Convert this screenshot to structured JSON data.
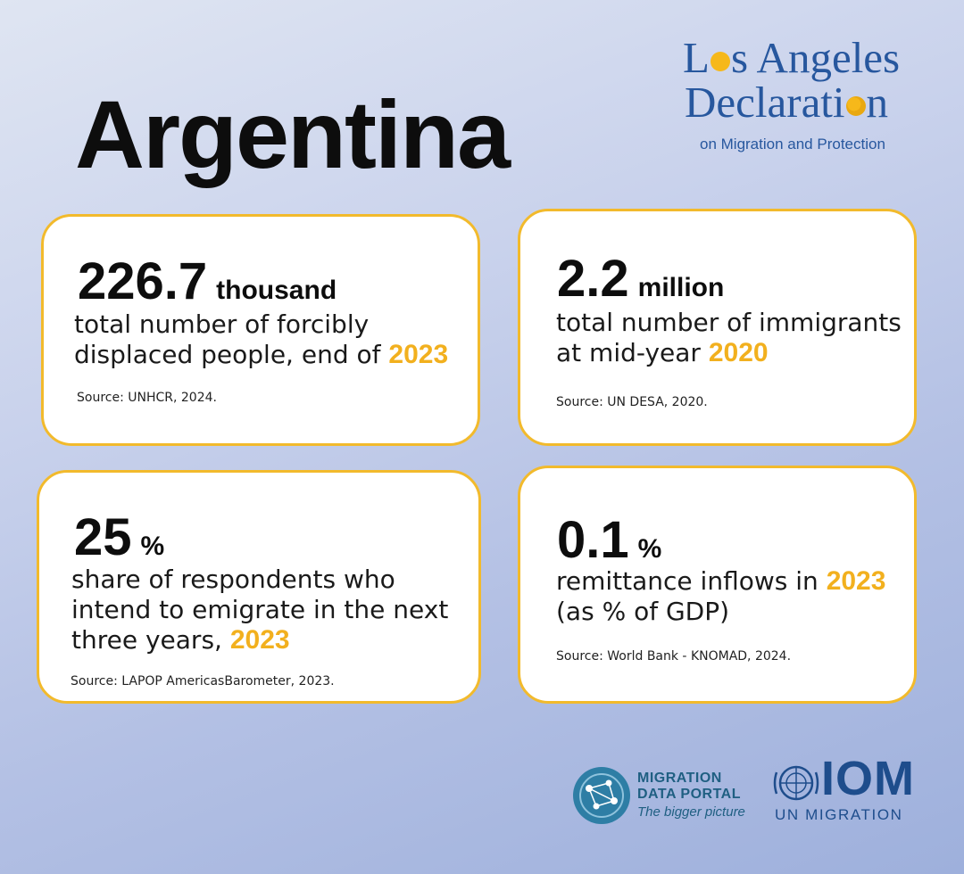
{
  "country": "Argentina",
  "logo_lad": {
    "line1_a": "L",
    "line1_b": "s Angeles",
    "line2_a": "Declarati",
    "line2_b": "n",
    "subtitle": "on Migration and Protection"
  },
  "cards": [
    {
      "value": "226.7",
      "unit": "thousand",
      "desc_line1": "total number of forcibly",
      "desc_line2": "displaced people, end of",
      "year": "2023",
      "source": "Source: UNHCR, 2024."
    },
    {
      "value": "2.2",
      "unit": "million",
      "desc_line1": "total number of immigrants",
      "desc_line2": "at mid-year",
      "year": "2020",
      "source": "Source: UN DESA, 2020."
    },
    {
      "value": "25",
      "unit": "%",
      "desc_line1": "share of respondents who",
      "desc_line2": "intend to emigrate in the next",
      "desc_line3": "three years,",
      "year": "2023",
      "source": "Source: LAPOP AmericasBarometer, 2023."
    },
    {
      "value": "0.1",
      "unit": "%",
      "desc_line1": "remittance inflows in",
      "year": "2023",
      "desc_line2": "(as % of GDP)",
      "source": "Source: World Bank - KNOMAD, 2024."
    }
  ],
  "footer": {
    "mdp_line1": "MIGRATION",
    "mdp_line2": "DATA PORTAL",
    "mdp_tagline": "The bigger picture",
    "iom_title": "IOM",
    "iom_subtitle": "UN MIGRATION"
  },
  "colors": {
    "accent_yellow": "#f2b01e",
    "brand_blue": "#27579e",
    "iom_blue": "#1e4d8c",
    "mdp_teal": "#2e7ea5"
  }
}
